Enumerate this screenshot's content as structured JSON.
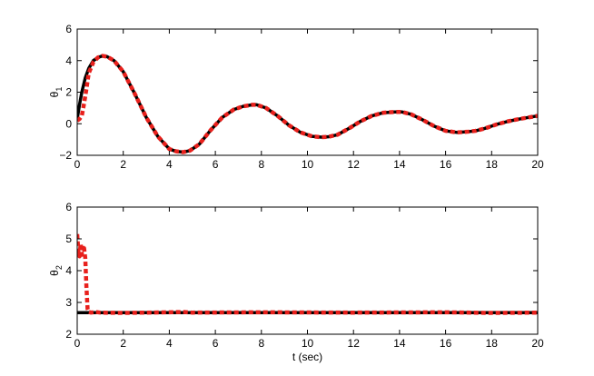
{
  "chart_data": [
    {
      "type": "line",
      "ylabel": "θ1",
      "xlim": [
        0,
        20
      ],
      "ylim": [
        -2,
        6
      ],
      "x_ticks": [
        "0",
        "2",
        "4",
        "6",
        "8",
        "10",
        "12",
        "14",
        "16",
        "18",
        "20"
      ],
      "y_ticks": [
        "-2",
        "0",
        "2",
        "4",
        "6"
      ],
      "grid": false,
      "series": [
        {
          "color": "#000000",
          "style": "solid",
          "x": [
            0,
            0.1,
            0.2,
            0.35,
            0.5,
            0.7,
            0.9,
            1.1,
            1.3,
            1.6,
            2.0,
            2.5,
            3.0,
            3.5,
            4.0,
            4.3,
            4.6,
            4.9,
            5.3,
            5.8,
            6.3,
            6.8,
            7.2,
            7.6,
            7.8,
            8.2,
            8.7,
            9.2,
            9.7,
            10.2,
            10.6,
            10.9,
            11.3,
            11.8,
            12.3,
            12.8,
            13.3,
            13.8,
            14.1,
            14.5,
            15.0,
            15.5,
            16.0,
            16.5,
            17.0,
            17.3,
            17.7,
            18.2,
            18.7,
            19.2,
            19.6,
            20.0
          ],
          "y": [
            0.3,
            1.2,
            2.0,
            2.9,
            3.5,
            4.0,
            4.2,
            4.3,
            4.25,
            4.0,
            3.3,
            1.9,
            0.4,
            -0.8,
            -1.6,
            -1.75,
            -1.8,
            -1.7,
            -1.3,
            -0.4,
            0.4,
            0.9,
            1.1,
            1.2,
            1.2,
            1.0,
            0.5,
            -0.1,
            -0.55,
            -0.8,
            -0.85,
            -0.83,
            -0.7,
            -0.3,
            0.15,
            0.5,
            0.7,
            0.75,
            0.75,
            0.6,
            0.25,
            -0.15,
            -0.45,
            -0.55,
            -0.5,
            -0.45,
            -0.3,
            -0.05,
            0.15,
            0.3,
            0.4,
            0.5
          ]
        },
        {
          "color": "#e8201c",
          "style": "dashed",
          "x": [
            0,
            0.1,
            0.2,
            0.3,
            0.4,
            0.5,
            0.7,
            0.9,
            1.1,
            1.3,
            1.6,
            2.0,
            2.5,
            3.0,
            3.5,
            4.0,
            4.3,
            4.6,
            4.9,
            5.3,
            5.8,
            6.3,
            6.8,
            7.2,
            7.6,
            7.8,
            8.2,
            8.7,
            9.2,
            9.7,
            10.2,
            10.6,
            10.9,
            11.3,
            11.8,
            12.3,
            12.8,
            13.3,
            13.8,
            14.1,
            14.5,
            15.0,
            15.5,
            16.0,
            16.5,
            17.0,
            17.3,
            17.7,
            18.2,
            18.7,
            19.2,
            19.6,
            20.0
          ],
          "y": [
            0.2,
            0.3,
            0.5,
            1.3,
            2.2,
            3.2,
            3.9,
            4.2,
            4.3,
            4.25,
            4.0,
            3.3,
            1.9,
            0.4,
            -0.8,
            -1.6,
            -1.75,
            -1.8,
            -1.7,
            -1.3,
            -0.4,
            0.4,
            0.9,
            1.1,
            1.2,
            1.2,
            1.0,
            0.5,
            -0.1,
            -0.55,
            -0.8,
            -0.85,
            -0.83,
            -0.7,
            -0.3,
            0.15,
            0.5,
            0.7,
            0.75,
            0.75,
            0.6,
            0.25,
            -0.15,
            -0.45,
            -0.55,
            -0.5,
            -0.45,
            -0.3,
            -0.05,
            0.15,
            0.3,
            0.4,
            0.5
          ]
        }
      ]
    },
    {
      "type": "line",
      "ylabel": "θ2",
      "xlabel": "t (sec)",
      "xlim": [
        0,
        20
      ],
      "ylim": [
        2,
        6
      ],
      "x_ticks": [
        "0",
        "2",
        "4",
        "6",
        "8",
        "10",
        "12",
        "14",
        "16",
        "18",
        "20"
      ],
      "y_ticks": [
        "2",
        "3",
        "4",
        "5",
        "6"
      ],
      "grid": false,
      "series": [
        {
          "color": "#000000",
          "style": "solid",
          "x": [
            0,
            20
          ],
          "y": [
            2.68,
            2.68
          ]
        },
        {
          "color": "#e8201c",
          "style": "dashed",
          "x": [
            0,
            0.05,
            0.1,
            0.15,
            0.2,
            0.25,
            0.3,
            0.35,
            0.4,
            0.45,
            0.5,
            0.6,
            0.8,
            1.0,
            2.0,
            4.0,
            4.6,
            5.0,
            8.0,
            12.0,
            16.0,
            18.0,
            20.0
          ],
          "y": [
            5.15,
            4.6,
            4.45,
            4.85,
            4.5,
            4.8,
            4.7,
            4.4,
            3.5,
            2.8,
            2.7,
            2.68,
            2.7,
            2.68,
            2.67,
            2.69,
            2.7,
            2.68,
            2.69,
            2.68,
            2.69,
            2.67,
            2.68
          ]
        }
      ]
    }
  ]
}
